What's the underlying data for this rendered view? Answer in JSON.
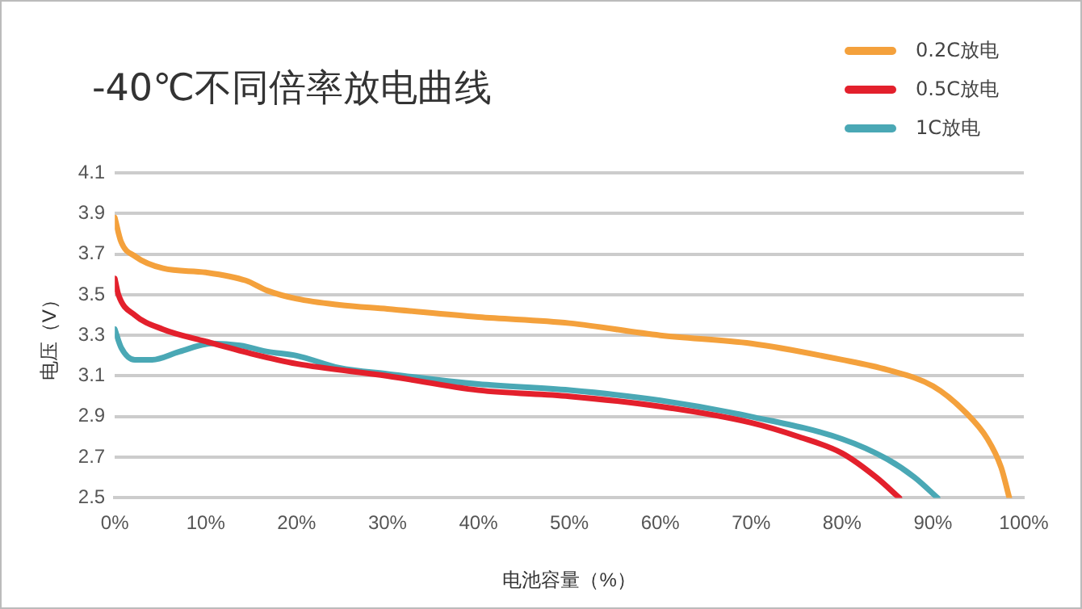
{
  "chart_data": {
    "type": "line",
    "title": "-40℃不同倍率放电曲线",
    "xlabel": "电池容量（%）",
    "ylabel": "电压（V）",
    "xlim": [
      0,
      100
    ],
    "xticks": [
      {
        "value": 0,
        "label": "0%"
      },
      {
        "value": 10,
        "label": "10%"
      },
      {
        "value": 20,
        "label": "20%"
      },
      {
        "value": 30,
        "label": "30%"
      },
      {
        "value": 40,
        "label": "40%"
      },
      {
        "value": 50,
        "label": "50%"
      },
      {
        "value": 60,
        "label": "60%"
      },
      {
        "value": 70,
        "label": "70%"
      },
      {
        "value": 80,
        "label": "80%"
      },
      {
        "value": 90,
        "label": "90%"
      },
      {
        "value": 100,
        "label": "100%"
      }
    ],
    "ylim": [
      2.5,
      4.1
    ],
    "yticks": [
      2.5,
      2.7,
      2.9,
      3.1,
      3.3,
      3.5,
      3.7,
      3.9,
      4.1
    ],
    "grid": "y",
    "legend": "top right",
    "marker": "none",
    "line_style": "solid",
    "series": [
      {
        "name": "0.2C放电",
        "color": "#f4a13c",
        "x": [
          0,
          0.7,
          2.2,
          5.3,
          10,
          14.4,
          16.8,
          20,
          24.7,
          30,
          40,
          50,
          60,
          70,
          80,
          85,
          90,
          93.6,
          96,
          97.5,
          98.4
        ],
        "values": [
          3.88,
          3.76,
          3.69,
          3.63,
          3.61,
          3.57,
          3.52,
          3.48,
          3.45,
          3.43,
          3.39,
          3.36,
          3.3,
          3.26,
          3.18,
          3.13,
          3.05,
          2.92,
          2.79,
          2.65,
          2.5
        ]
      },
      {
        "name": "0.5C放电",
        "color": "#e3202c",
        "x": [
          0,
          0.4,
          2.2,
          5.3,
          10,
          15,
          20,
          30,
          40,
          50,
          60,
          70,
          75.3,
          80,
          83.8,
          86.3
        ],
        "values": [
          3.58,
          3.5,
          3.4,
          3.33,
          3.27,
          3.21,
          3.16,
          3.1,
          3.03,
          3,
          2.95,
          2.87,
          2.8,
          2.72,
          2.6,
          2.5
        ]
      },
      {
        "name": "1C放电",
        "color": "#4aa8b5",
        "x": [
          0,
          0.7,
          2.2,
          4.1,
          7.1,
          10.7,
          13.8,
          16.8,
          20,
          24.7,
          30,
          40,
          50,
          60,
          70,
          80,
          85,
          88,
          90.5
        ],
        "values": [
          3.33,
          3.24,
          3.18,
          3.18,
          3.22,
          3.26,
          3.25,
          3.22,
          3.2,
          3.14,
          3.11,
          3.06,
          3.03,
          2.98,
          2.9,
          2.79,
          2.69,
          2.6,
          2.5
        ]
      }
    ]
  }
}
